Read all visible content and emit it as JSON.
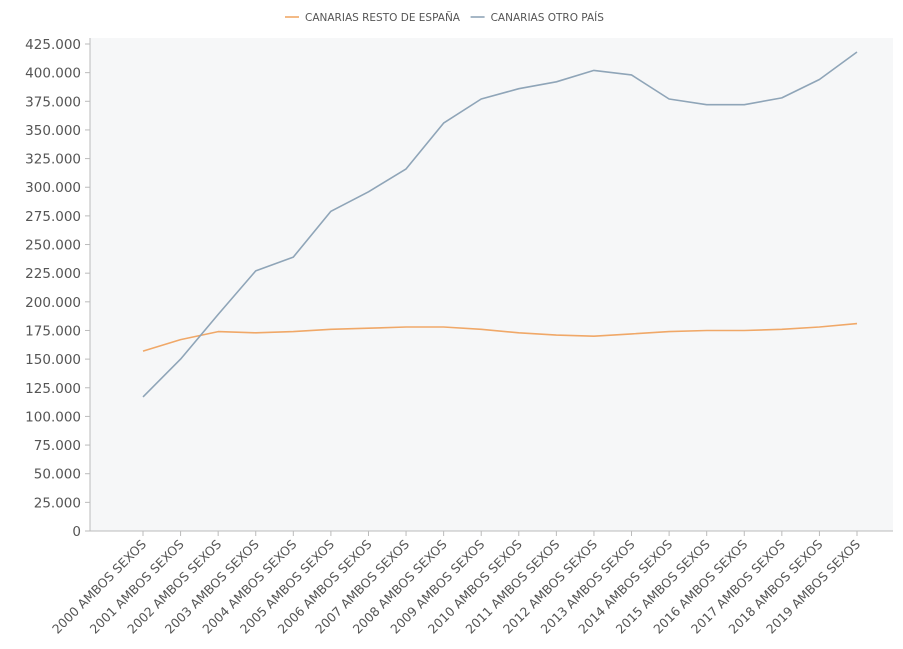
{
  "chart_data": {
    "type": "line",
    "categories": [
      "2000 AMBOS SEXOS",
      "2001 AMBOS SEXOS",
      "2002 AMBOS SEXOS",
      "2003 AMBOS SEXOS",
      "2004 AMBOS SEXOS",
      "2005 AMBOS SEXOS",
      "2006 AMBOS SEXOS",
      "2007 AMBOS SEXOS",
      "2008 AMBOS SEXOS",
      "2009 AMBOS SEXOS",
      "2010 AMBOS SEXOS",
      "2011 AMBOS SEXOS",
      "2012 AMBOS SEXOS",
      "2013 AMBOS SEXOS",
      "2014 AMBOS SEXOS",
      "2015 AMBOS SEXOS",
      "2016 AMBOS SEXOS",
      "2017 AMBOS SEXOS",
      "2018 AMBOS SEXOS",
      "2019 AMBOS SEXOS"
    ],
    "series": [
      {
        "name": "CANARIAS RESTO DE ESPAÑA",
        "color": "#f0a868",
        "values": [
          157000,
          167000,
          174000,
          173000,
          174000,
          176000,
          177000,
          178000,
          178000,
          176000,
          173000,
          171000,
          170000,
          172000,
          174000,
          175000,
          175000,
          176000,
          178000,
          181000
        ]
      },
      {
        "name": "CANARIAS OTRO PAÍS",
        "color": "#8fa5b8",
        "values": [
          117000,
          150000,
          189000,
          227000,
          239000,
          279000,
          296000,
          316000,
          356000,
          377000,
          386000,
          392000,
          402000,
          398000,
          377000,
          372000,
          372000,
          378000,
          394000,
          418000
        ]
      }
    ],
    "yticks": [
      "0",
      "25.000",
      "50.000",
      "75.000",
      "100.000",
      "125.000",
      "150.000",
      "175.000",
      "200.000",
      "225.000",
      "250.000",
      "275.000",
      "300.000",
      "325.000",
      "350.000",
      "375.000",
      "400.000",
      "425.000"
    ],
    "ylim": [
      0,
      425000
    ],
    "legend_position": "top-center",
    "grid": false,
    "plot_background": "#f6f7f8",
    "axis_color": "#bbbbbb"
  }
}
